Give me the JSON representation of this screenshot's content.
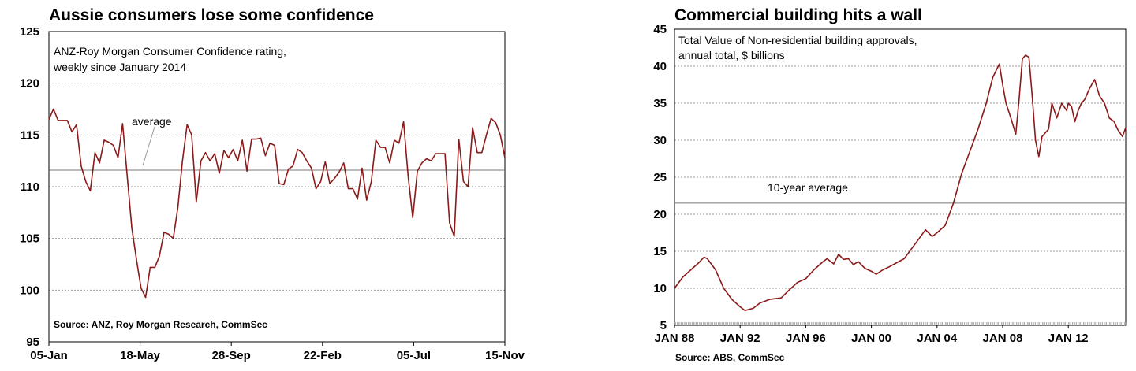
{
  "charts": [
    {
      "title": "Aussie consumers lose some confidence",
      "subtitle_lines": [
        "ANZ-Roy Morgan Consumer Confidence rating,",
        "weekly since January 2014"
      ],
      "source": "Source: ANZ, Roy Morgan Research, CommSec",
      "annotation": "average",
      "chart_data": {
        "type": "line",
        "x_ticks": [
          "05-Jan",
          "18-May",
          "28-Sep",
          "22-Feb",
          "05-Jul",
          "15-Nov"
        ],
        "y_ticks": [
          95,
          100,
          105,
          110,
          115,
          120,
          125
        ],
        "ylim": [
          95,
          125
        ],
        "average": 111.6,
        "line_color": "#8b1a1a",
        "grid": true,
        "series": [
          {
            "values": [
              116.5,
              117.5,
              116.4,
              116.4,
              116.4,
              115.3,
              116.0,
              112.0,
              110.5,
              109.6,
              113.3,
              112.3,
              114.5,
              114.3,
              114.0,
              112.8,
              116.1,
              111.0,
              106.0,
              103.0,
              100.2,
              99.3,
              102.2,
              102.2,
              103.3,
              105.6,
              105.4,
              105.0,
              108.0,
              112.5,
              116.0,
              115.0,
              108.5,
              112.5,
              113.3,
              112.5,
              113.2,
              111.3,
              113.5,
              112.8,
              113.6,
              112.5,
              114.5,
              111.5,
              114.6,
              114.6,
              114.7,
              113.0,
              114.2,
              114.0,
              110.3,
              110.2,
              111.7,
              112.0,
              113.6,
              113.3,
              112.5,
              111.8,
              109.8,
              110.5,
              112.4,
              110.3,
              110.8,
              111.4,
              112.3,
              109.8,
              109.8,
              108.8,
              111.8,
              108.7,
              110.5,
              114.5,
              113.8,
              113.8,
              112.3,
              114.5,
              114.2,
              116.3,
              111.0,
              107.0,
              111.5,
              112.3,
              112.7,
              112.5,
              113.2,
              113.2,
              113.2,
              106.5,
              105.2,
              114.6,
              110.5,
              110.0,
              115.7,
              113.3,
              113.3,
              115.0,
              116.6,
              116.2,
              115.0,
              112.8
            ]
          }
        ]
      }
    },
    {
      "title": "Commercial building hits a wall",
      "subtitle_lines": [
        "Total Value of Non-residential building approvals,",
        "annual total, $ billions"
      ],
      "source": "Source: ABS, CommSec",
      "annotation": "10-year average",
      "chart_data": {
        "type": "line",
        "x_ticks": [
          "JAN 88",
          "JAN 92",
          "JAN 96",
          "JAN 00",
          "JAN 04",
          "JAN 08",
          "JAN 12"
        ],
        "x_range": [
          1988,
          2015.5
        ],
        "y_ticks": [
          5,
          10,
          15,
          20,
          25,
          30,
          35,
          40,
          45
        ],
        "ylim": [
          5,
          45
        ],
        "average": 21.5,
        "line_color": "#8b1a1a",
        "grid": true,
        "series": [
          {
            "x": [
              1988.0,
              1988.5,
              1989.0,
              1989.5,
              1989.8,
              1990.0,
              1990.5,
              1991.0,
              1991.5,
              1992.0,
              1992.3,
              1992.8,
              1993.2,
              1993.8,
              1994.5,
              1995.0,
              1995.5,
              1996.0,
              1996.5,
              1997.0,
              1997.3,
              1997.7,
              1998.0,
              1998.3,
              1998.6,
              1998.9,
              1999.2,
              1999.6,
              2000.0,
              2000.3,
              2000.7,
              2001.0,
              2001.5,
              2002.0,
              2002.5,
              2003.0,
              2003.3,
              2003.7,
              2004.0,
              2004.5,
              2005.0,
              2005.5,
              2006.0,
              2006.5,
              2007.0,
              2007.4,
              2007.8,
              2008.0,
              2008.2,
              2008.5,
              2008.8,
              2009.0,
              2009.2,
              2009.4,
              2009.6,
              2009.8,
              2010.0,
              2010.2,
              2010.4,
              2010.6,
              2010.8,
              2011.0,
              2011.3,
              2011.6,
              2011.9,
              2012.0,
              2012.2,
              2012.4,
              2012.6,
              2012.8,
              2013.0,
              2013.3,
              2013.6,
              2013.9,
              2014.2,
              2014.5,
              2014.8,
              2015.0,
              2015.3,
              2015.5
            ],
            "y": [
              10.0,
              11.5,
              12.5,
              13.5,
              14.2,
              14.0,
              12.5,
              10.0,
              8.5,
              7.5,
              7.0,
              7.3,
              8.0,
              8.5,
              8.7,
              9.8,
              10.8,
              11.3,
              12.5,
              13.5,
              14.0,
              13.3,
              14.6,
              13.9,
              14.0,
              13.2,
              13.6,
              12.7,
              12.3,
              11.9,
              12.5,
              12.8,
              13.4,
              14.0,
              15.5,
              17.0,
              17.9,
              17.0,
              17.5,
              18.5,
              21.5,
              25.5,
              28.5,
              31.5,
              35.0,
              38.5,
              40.3,
              37.5,
              35.0,
              33.0,
              30.8,
              35.5,
              41.0,
              41.5,
              41.2,
              36.0,
              30.0,
              27.8,
              30.5,
              31.0,
              31.5,
              35.0,
              33.0,
              35.0,
              34.0,
              35.0,
              34.5,
              32.5,
              34.0,
              35.0,
              35.5,
              37.0,
              38.2,
              36.0,
              35.0,
              33.0,
              32.5,
              31.5,
              30.5,
              31.7
            ]
          }
        ]
      }
    }
  ]
}
